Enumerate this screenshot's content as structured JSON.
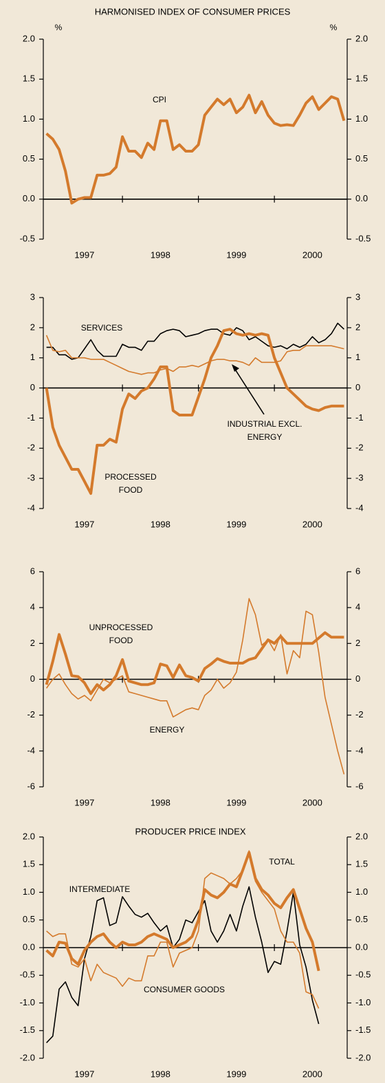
{
  "chart_data": [
    {
      "type": "line",
      "title": "HARMONISED INDEX OF CONSUMER PRICES",
      "unit_label": "%",
      "categories": [
        null,
        null,
        null,
        null,
        null,
        null,
        "1997",
        null,
        null,
        null,
        null,
        null,
        null,
        null,
        null,
        null,
        null,
        null,
        "1998",
        null,
        null,
        null,
        null,
        null,
        null,
        null,
        null,
        null,
        null,
        null,
        "1999",
        null,
        null,
        null,
        null,
        null,
        null,
        null,
        null,
        null,
        null,
        null,
        "2000",
        null,
        null,
        null,
        null,
        null
      ],
      "ylim": [
        -0.5,
        2
      ],
      "yticks": [
        {
          "value": 2,
          "label": "2.0"
        },
        1.5,
        {
          "value": 1,
          "label": "1.0"
        },
        0.5,
        {
          "value": 0,
          "label": "0.0"
        },
        -0.5
      ],
      "zero_line": true,
      "series": [
        {
          "name": "CPI",
          "color": "#d47a2c",
          "width": 4,
          "values": [
            0.82,
            0.75,
            0.62,
            0.35,
            -0.05,
            0.0,
            0.02,
            0.02,
            0.3,
            0.3,
            0.32,
            0.4,
            0.78,
            0.6,
            0.6,
            0.52,
            0.7,
            0.62,
            0.98,
            0.98,
            0.62,
            0.68,
            0.6,
            0.6,
            0.68,
            1.05,
            1.15,
            1.25,
            1.18,
            1.25,
            1.08,
            1.15,
            1.3,
            1.08,
            1.22,
            1.05,
            0.95,
            0.92,
            0.93,
            0.92,
            1.05,
            1.2,
            1.28,
            1.12,
            1.2,
            1.28,
            1.25,
            0.98
          ]
        }
      ]
    },
    {
      "type": "line",
      "categories": [
        null,
        null,
        null,
        null,
        null,
        null,
        "1997",
        null,
        null,
        null,
        null,
        null,
        null,
        null,
        null,
        null,
        null,
        null,
        "1998",
        null,
        null,
        null,
        null,
        null,
        null,
        null,
        null,
        null,
        null,
        null,
        "1999",
        null,
        null,
        null,
        null,
        null,
        null,
        null,
        null,
        null,
        null,
        null,
        "2000",
        null,
        null,
        null,
        null,
        null
      ],
      "ylim": [
        -4,
        3
      ],
      "yticks": [
        3,
        2,
        1,
        0,
        -1,
        -2,
        -3,
        -4
      ],
      "zero_line": true,
      "series": [
        {
          "name": "SERVICES",
          "color": "#000000",
          "width": 1.6,
          "values": [
            1.35,
            1.35,
            1.1,
            1.1,
            0.95,
            1.0,
            1.3,
            1.6,
            1.25,
            1.05,
            1.05,
            1.05,
            1.45,
            1.35,
            1.35,
            1.25,
            1.55,
            1.55,
            1.8,
            1.9,
            1.95,
            1.9,
            1.7,
            1.75,
            1.8,
            1.9,
            1.95,
            1.95,
            1.8,
            1.75,
            2.0,
            1.9,
            1.6,
            1.7,
            1.55,
            1.4,
            1.35,
            1.4,
            1.3,
            1.45,
            1.35,
            1.45,
            1.7,
            1.5,
            1.6,
            1.8,
            2.15,
            1.95
          ]
        },
        {
          "name": "INDUSTRIAL EXCL. ENERGY",
          "color": "#d47a2c",
          "width": 1.6,
          "values": [
            1.75,
            1.25,
            1.2,
            1.25,
            1.0,
            1.0,
            1.0,
            0.95,
            0.95,
            0.95,
            0.85,
            0.75,
            0.65,
            0.55,
            0.5,
            0.45,
            0.5,
            0.5,
            0.6,
            0.65,
            0.55,
            0.7,
            0.7,
            0.75,
            0.7,
            0.8,
            0.9,
            0.95,
            0.95,
            0.9,
            0.9,
            0.85,
            0.75,
            1.0,
            0.85,
            0.85,
            0.85,
            0.9,
            1.2,
            1.25,
            1.25,
            1.4,
            1.4,
            1.4,
            1.4,
            1.4,
            1.35,
            1.3
          ]
        },
        {
          "name": "PROCESSED FOOD",
          "color": "#d47a2c",
          "width": 4,
          "values": [
            0,
            -1.3,
            -1.9,
            -2.3,
            -2.7,
            -2.7,
            -3.1,
            -3.5,
            -1.9,
            -1.9,
            -1.7,
            -1.8,
            -0.7,
            -0.2,
            -0.35,
            -0.1,
            0.0,
            0.3,
            0.7,
            0.7,
            -0.75,
            -0.9,
            -0.9,
            -0.9,
            -0.3,
            0.3,
            1.0,
            1.4,
            1.9,
            1.95,
            1.8,
            1.75,
            1.8,
            1.75,
            1.8,
            1.75,
            1.0,
            0.5,
            0.0,
            -0.2,
            -0.4,
            -0.6,
            -0.7,
            -0.75,
            -0.65,
            -0.6,
            -0.6,
            -0.6
          ]
        }
      ]
    },
    {
      "type": "line",
      "categories": [
        null,
        null,
        null,
        null,
        null,
        null,
        "1997",
        null,
        null,
        null,
        null,
        null,
        null,
        null,
        null,
        null,
        null,
        null,
        "1998",
        null,
        null,
        null,
        null,
        null,
        null,
        null,
        null,
        null,
        null,
        null,
        "1999",
        null,
        null,
        null,
        null,
        null,
        null,
        null,
        null,
        null,
        null,
        null,
        "2000",
        null,
        null,
        null,
        null,
        null
      ],
      "ylim": [
        -6,
        6
      ],
      "yticks": [
        6,
        4,
        2,
        0,
        -2,
        -4,
        -6
      ],
      "zero_line": true,
      "series": [
        {
          "name": "UNPROCESSED FOOD",
          "color": "#d47a2c",
          "width": 4,
          "values": [
            -0.3,
            1.0,
            2.5,
            1.4,
            0.2,
            0.15,
            -0.2,
            -0.8,
            -0.3,
            -0.6,
            -0.3,
            0.2,
            1.1,
            -0.1,
            -0.2,
            -0.3,
            -0.3,
            -0.2,
            0.85,
            0.75,
            0.1,
            0.8,
            0.2,
            0.1,
            -0.1,
            0.6,
            0.85,
            1.15,
            1.0,
            0.9,
            0.9,
            0.9,
            1.1,
            1.2,
            1.7,
            2.2,
            2.0,
            2.4,
            2.0,
            2.0,
            2.0,
            2.0,
            2.0,
            2.3,
            2.6,
            2.35,
            2.35,
            2.35
          ]
        },
        {
          "name": "ENERGY",
          "color": "#d47a2c",
          "width": 1.6,
          "values": [
            -0.5,
            0.0,
            0.3,
            -0.3,
            -0.8,
            -1.1,
            -0.9,
            -1.2,
            -0.6,
            0.0,
            -0.2,
            0.0,
            0.2,
            -0.7,
            -0.8,
            -0.9,
            -1.0,
            -1.1,
            -1.2,
            -1.2,
            -2.1,
            -1.9,
            -1.7,
            -1.6,
            -1.7,
            -0.9,
            -0.6,
            0.0,
            -0.5,
            -0.2,
            0.4,
            2.2,
            4.5,
            3.6,
            1.9,
            2.2,
            1.6,
            2.5,
            0.3,
            1.6,
            1.2,
            3.8,
            3.6,
            1.5,
            -1.0,
            -2.5,
            -4.0,
            -5.3
          ]
        }
      ]
    },
    {
      "type": "line",
      "title": "PRODUCER PRICE INDEX",
      "categories": [
        null,
        null,
        null,
        null,
        null,
        null,
        "1997",
        null,
        null,
        null,
        null,
        null,
        null,
        null,
        null,
        null,
        null,
        null,
        "1998",
        null,
        null,
        null,
        null,
        null,
        null,
        null,
        null,
        null,
        null,
        null,
        "1999",
        null,
        null,
        null,
        null,
        null,
        null,
        null,
        null,
        null,
        null,
        null,
        "2000",
        null,
        null,
        null,
        null,
        null
      ],
      "ylim": [
        -2,
        2
      ],
      "yticks": [
        {
          "value": 2,
          "label": "2.0"
        },
        1.5,
        {
          "value": 1,
          "label": "1.0"
        },
        0.5,
        {
          "value": 0,
          "label": "0.0"
        },
        -0.5,
        {
          "value": -1,
          "label": "-1.0"
        },
        -1.5,
        {
          "value": -2,
          "label": "-2.0"
        }
      ],
      "zero_line": true,
      "series": [
        {
          "name": "TOTAL",
          "color": "#d47a2c",
          "width": 4,
          "values": [
            -0.05,
            -0.15,
            0.1,
            0.08,
            -0.2,
            -0.3,
            -0.05,
            0.1,
            0.2,
            0.25,
            0.1,
            0.0,
            0.1,
            0.05,
            0.05,
            0.1,
            0.2,
            0.25,
            0.2,
            0.15,
            0.0,
            0.05,
            0.1,
            0.2,
            0.5,
            1.05,
            0.95,
            0.9,
            1.0,
            1.15,
            1.1,
            1.4,
            1.72,
            1.25,
            1.05,
            0.95,
            0.8,
            0.72,
            0.9,
            1.05,
            0.7,
            0.35,
            0.1,
            -0.42,
            null,
            null,
            null,
            null
          ]
        },
        {
          "name": "INTERMEDIATE",
          "color": "#000000",
          "width": 1.6,
          "values": [
            -1.72,
            -1.6,
            -0.75,
            -0.62,
            -0.9,
            -1.05,
            -0.2,
            0.2,
            0.85,
            0.9,
            0.4,
            0.45,
            0.92,
            0.75,
            0.6,
            0.55,
            0.62,
            0.45,
            0.3,
            0.4,
            0.0,
            0.15,
            0.5,
            0.45,
            0.65,
            0.85,
            0.3,
            0.1,
            0.3,
            0.6,
            0.3,
            0.75,
            1.1,
            0.55,
            0.1,
            -0.45,
            -0.25,
            -0.3,
            0.3,
            1.0,
            0.05,
            -0.35,
            -0.95,
            -1.38,
            null,
            null,
            null,
            null
          ]
        },
        {
          "name": "CONSUMER GOODS",
          "color": "#d47a2c",
          "width": 1.6,
          "values": [
            0.3,
            0.2,
            0.25,
            0.25,
            -0.3,
            -0.35,
            -0.2,
            -0.6,
            -0.3,
            -0.45,
            -0.5,
            -0.55,
            -0.7,
            -0.55,
            -0.6,
            -0.6,
            -0.15,
            -0.15,
            0.1,
            0.1,
            -0.35,
            -0.1,
            -0.05,
            0.0,
            0.3,
            1.25,
            1.35,
            1.3,
            1.25,
            1.15,
            1.25,
            1.4,
            1.75,
            1.2,
            1.0,
            0.85,
            0.7,
            0.3,
            0.1,
            0.1,
            -0.1,
            -0.8,
            -0.85,
            -1.1,
            null,
            null,
            null,
            null
          ]
        }
      ]
    }
  ]
}
